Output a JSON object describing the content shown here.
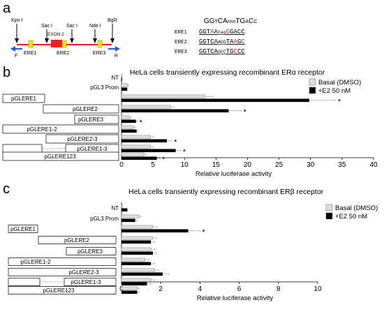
{
  "panel_a": {
    "label": "a",
    "sites": [
      "Kpn I",
      "Sac I",
      "Sac I",
      "Nde I",
      "BglII"
    ],
    "exon": "EXON 2",
    "elements": [
      "ERE1",
      "ERE2",
      "ERE3"
    ],
    "primers": [
      "F",
      "R"
    ],
    "consensus": [
      {
        "t": "GG",
        "small": false
      },
      {
        "t": "T",
        "small": true
      },
      {
        "t": "CA",
        "small": false
      },
      {
        "t": "nnn",
        "small": true
      },
      {
        "t": "TG",
        "small": false
      },
      {
        "t": "A",
        "small": true
      },
      {
        "t": "C",
        "small": false
      },
      {
        "t": "C",
        "small": true
      }
    ],
    "sequences": [
      {
        "name": "ERE1",
        "parts": [
          {
            "t": "GGT",
            "small": false,
            "color": "#000000"
          },
          {
            "t": "A",
            "small": false,
            "color": "#d42b1e"
          },
          {
            "t": "A",
            "small": false,
            "color": "#000000"
          },
          {
            "t": "tag",
            "small": true,
            "color": "#000000"
          },
          {
            "t": "G",
            "small": false,
            "color": "#d42b1e"
          },
          {
            "t": "GACC",
            "small": false,
            "color": "#000000"
          }
        ]
      },
      {
        "name": "ERE2",
        "parts": [
          {
            "t": "GGTCA",
            "small": false,
            "color": "#000000"
          },
          {
            "t": "AGG",
            "small": true,
            "color": "#000000"
          },
          {
            "t": "TA",
            "small": false,
            "color": "#000000"
          },
          {
            "t": "A",
            "small": false,
            "color": "#d42b1e"
          },
          {
            "t": "G",
            "small": false,
            "color": "#000000"
          },
          {
            "t": "C",
            "small": false,
            "color": "#d42b1e"
          }
        ]
      },
      {
        "name": "ERE3",
        "parts": [
          {
            "t": "GGTCA",
            "small": false,
            "color": "#000000"
          },
          {
            "t": "GCC",
            "small": true,
            "color": "#000000"
          },
          {
            "t": "TG",
            "small": false,
            "color": "#000000"
          },
          {
            "t": "C",
            "small": false,
            "color": "#d42b1e"
          },
          {
            "t": "CC",
            "small": false,
            "color": "#000000"
          }
        ]
      }
    ]
  },
  "panel_b": {
    "label": "b",
    "title": "HeLa cells transiently expressing recombinant ERα receptor",
    "xlabel": "Relative luciferase activity",
    "row_labels": [
      "NT",
      "pGL3 Prom"
    ],
    "constructs": [
      "pGLERE1",
      "pGLERE2",
      "pGLERE3",
      "pGLERE1-2",
      "pGLERE2-3",
      "pGLERE1-3",
      "pGLERE123"
    ],
    "legend": [
      {
        "name": "Basal (DMSO)",
        "color": "#dddddd"
      },
      {
        "name": "+E2 50 nM",
        "color": "#000000"
      }
    ]
  },
  "panel_c": {
    "label": "c",
    "title": "HeLa cells transiently expressing recombinant ERβ receptor",
    "xlabel": "Relative luciferase activity",
    "row_labels": [
      "NT",
      "pGL3 Prom"
    ],
    "constructs": [
      "pGLERE1",
      "pGLERE2",
      "pGLERE3",
      "pGLERE1-2",
      "pGLERE2-3",
      "pGLERE1-3",
      "pGLERE123"
    ],
    "legend": [
      {
        "name": "Basal (DMSO)",
        "color": "#dddddd"
      },
      {
        "name": "+E2 50 nM",
        "color": "#000000"
      }
    ]
  },
  "chart_data": [
    {
      "type": "bar",
      "orientation": "horizontal",
      "title": "HeLa cells transiently expressing recombinant ERα receptor",
      "xlabel": "Relative luciferase activity",
      "xlim": [
        0,
        40
      ],
      "xticks": [
        "0",
        "5",
        "10",
        "15",
        "20",
        "25",
        "30",
        "35",
        "40"
      ],
      "categories": [
        "NT",
        "pGL3 Prom",
        "pGLERE1",
        "pGLERE2",
        "pGLERE3",
        "pGLERE1-2",
        "pGLERE2-3",
        "pGLERE1-3",
        "pGLERE123"
      ],
      "series": [
        {
          "name": "Basal (DMSO)",
          "color": "#dddddd",
          "values": [
            0.1,
            1.0,
            13.3,
            7.8,
            1.3,
            1.9,
            4.6,
            4.6,
            3.6
          ],
          "errors": [
            0,
            0.1,
            1.2,
            0.5,
            0.2,
            0.3,
            0.5,
            0.4,
            0.4
          ]
        },
        {
          "name": "+E2 50 nM",
          "color": "#000000",
          "values": [
            0.1,
            0.9,
            29.8,
            17.0,
            2.3,
            2.4,
            7.2,
            8.6,
            5.6
          ],
          "errors": [
            0,
            0.1,
            4.2,
            2.0,
            0.2,
            0.2,
            0.8,
            0.8,
            0.5
          ]
        }
      ],
      "significant": [
        false,
        false,
        true,
        true,
        true,
        false,
        true,
        true,
        true
      ],
      "annotation": "*",
      "legend": "top-right"
    },
    {
      "type": "bar",
      "orientation": "horizontal",
      "title": "HeLa cells transiently expressing recombinant ERβ receptor",
      "xlabel": "Relative luciferase activity",
      "xlim": [
        0,
        10
      ],
      "xticks": [
        "0",
        "2",
        "4",
        "6",
        "8",
        "10"
      ],
      "categories": [
        "NT",
        "pGL3 Prom",
        "pGLERE1",
        "pGLERE2",
        "pGLERE3",
        "pGLERE1-2",
        "pGLERE2-3",
        "pGLERE1-3",
        "pGLERE123"
      ],
      "series": [
        {
          "name": "Basal (DMSO)",
          "color": "#dddddd",
          "values": [
            0.05,
            0.9,
            1.6,
            1.6,
            1.5,
            1.2,
            1.7,
            1.5,
            0.8
          ],
          "errors": [
            0,
            0.1,
            0.2,
            0.2,
            0.2,
            0.2,
            0.2,
            0.2,
            0.1
          ]
        },
        {
          "name": "+E2 50 nM",
          "color": "#000000",
          "values": [
            0.3,
            0.7,
            3.4,
            1.5,
            1.6,
            1.5,
            2.1,
            1.3,
            0.8
          ],
          "errors": [
            0,
            0.1,
            0.6,
            0.2,
            0.2,
            0.2,
            0.3,
            0.2,
            0.1
          ]
        }
      ],
      "significant": [
        false,
        false,
        true,
        false,
        false,
        false,
        false,
        false,
        false
      ],
      "annotation": "*",
      "legend": "top-right"
    }
  ]
}
